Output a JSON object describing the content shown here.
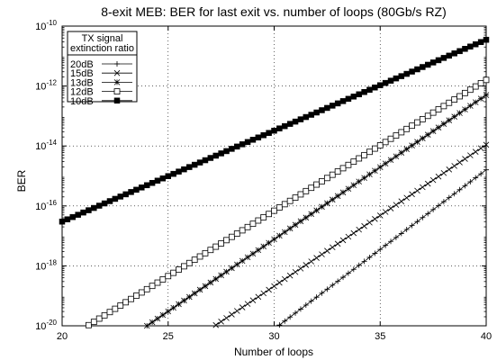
{
  "chart_data": {
    "type": "line",
    "title": "8-exit MEB: BER for last exit vs. number of loops (80Gb/s RZ)",
    "xlabel": "Number of loops",
    "ylabel": "BER",
    "xlim": [
      20,
      40
    ],
    "ylim": [
      1e-20,
      1e-10
    ],
    "yscale": "log",
    "grid": true,
    "x_ticks": [
      20,
      25,
      30,
      35,
      40
    ],
    "x_tick_labels": [
      "20",
      "25",
      "30",
      "35",
      "40"
    ],
    "y_ticks": [
      1e-20,
      1e-18,
      1e-16,
      1e-14,
      1e-12,
      1e-10
    ],
    "y_tick_labels": [
      {
        "base": "10",
        "exp": "-20"
      },
      {
        "base": "10",
        "exp": "-18"
      },
      {
        "base": "10",
        "exp": "-16"
      },
      {
        "base": "10",
        "exp": "-14"
      },
      {
        "base": "10",
        "exp": "-12"
      },
      {
        "base": "10",
        "exp": "-10"
      }
    ],
    "legend": {
      "placement": "top-left",
      "title_lines": [
        "TX signal",
        "extinction ratio"
      ]
    },
    "series": [
      {
        "name": "20dB",
        "marker": "plus",
        "start": [
          30.2,
          1e-20
        ],
        "end": [
          40,
          1.6e-15
        ]
      },
      {
        "name": "15dB",
        "marker": "cross",
        "start": [
          27.2,
          1e-20
        ],
        "end": [
          40,
          1.1e-14
        ]
      },
      {
        "name": "13dB",
        "marker": "star",
        "start": [
          24.0,
          1e-20
        ],
        "end": [
          40,
          5e-13
        ]
      },
      {
        "name": "12dB",
        "marker": "open-square",
        "start": [
          21.2,
          1e-20
        ],
        "end": [
          40,
          1.6e-12
        ]
      },
      {
        "name": "10dB",
        "marker": "filled-square",
        "start": [
          20,
          3e-17
        ],
        "end": [
          40,
          3.5e-11
        ]
      }
    ]
  }
}
